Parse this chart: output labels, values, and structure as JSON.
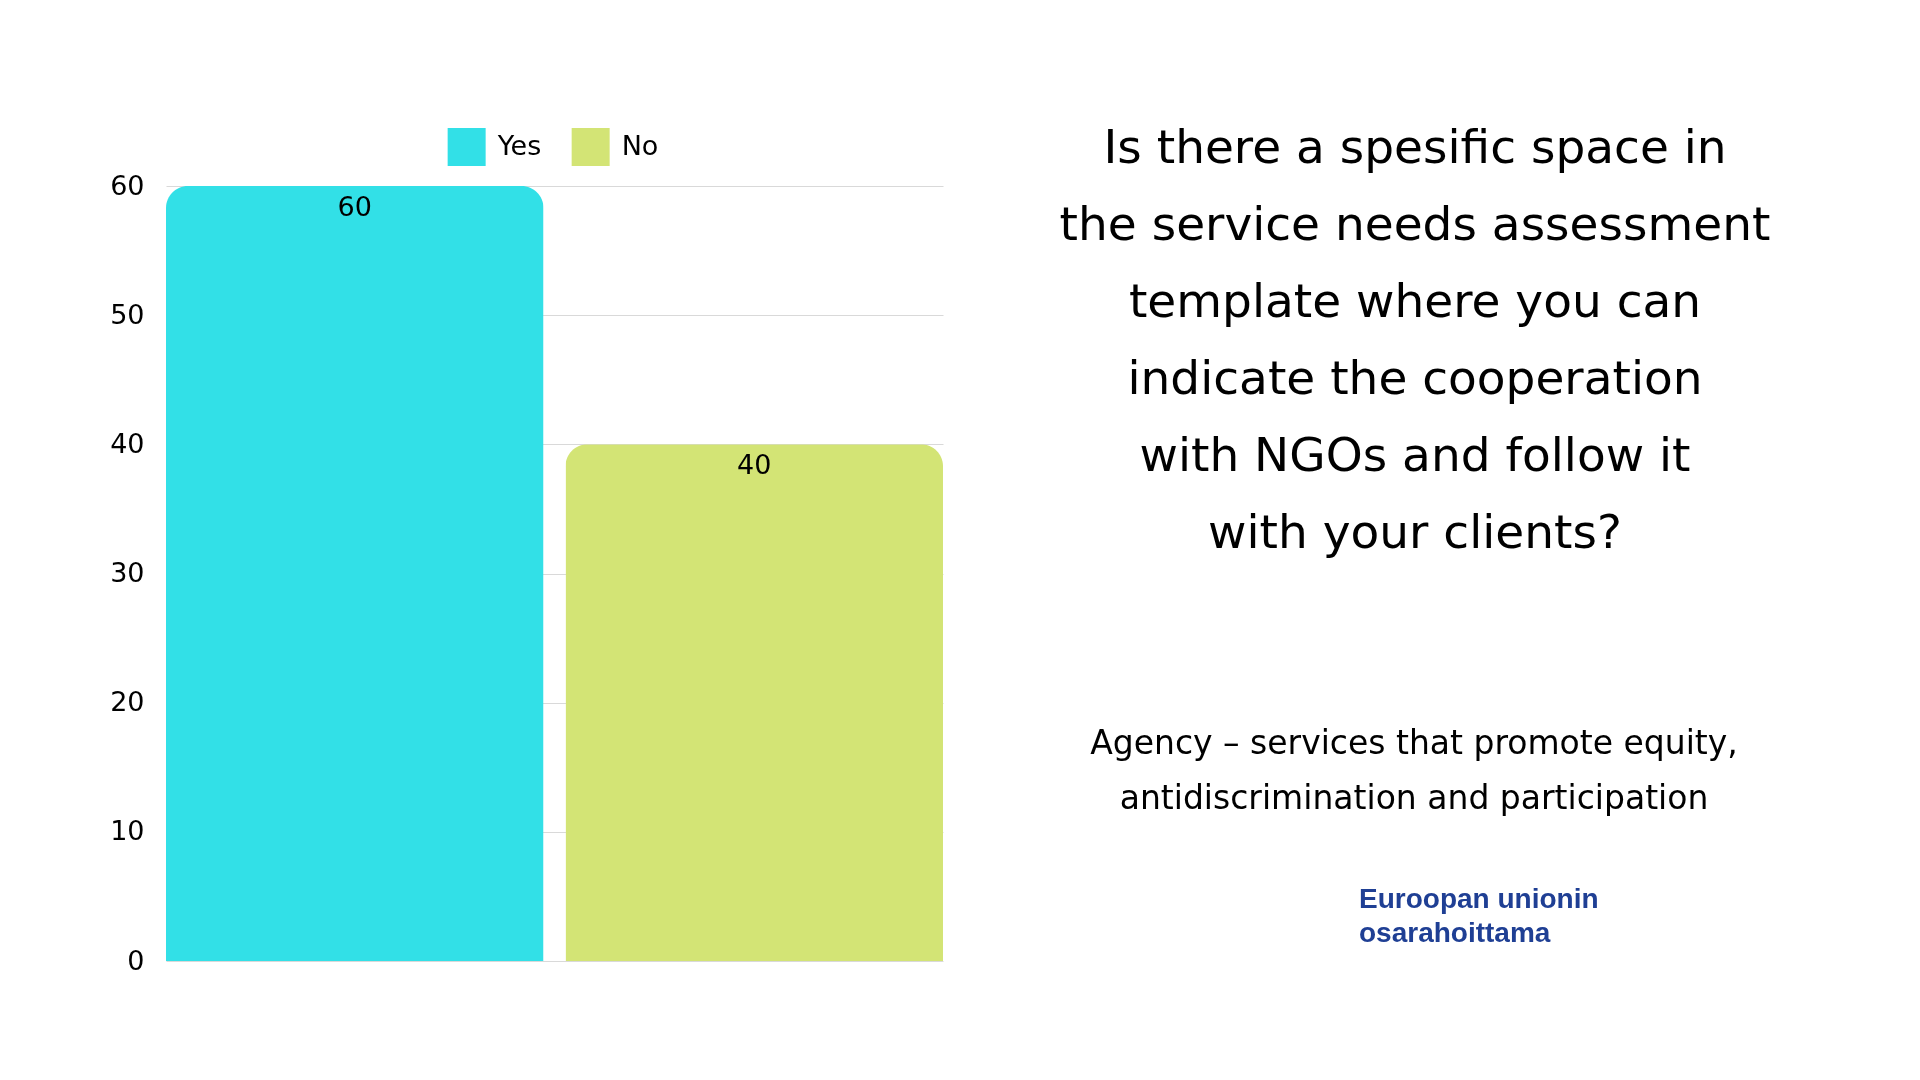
{
  "chart_data": {
    "type": "bar",
    "title": "Is there a spesific space in\nthe service needs assessment\ntemplate where you can\nindicate the cooperation\nwith NGOs and follow it\nwith your clients?",
    "subtitle": "Agency – services that promote equity,\nantidiscrimination and participation",
    "annotations": [
      "Euroopan unionin\nosarahoittama"
    ],
    "categories": [
      null
    ],
    "series": [
      {
        "name": "Yes",
        "color": "#32e0e7",
        "values": [
          60
        ]
      },
      {
        "name": "No",
        "color": "#d3e475",
        "values": [
          40
        ]
      }
    ],
    "ylim": [
      0,
      60
    ],
    "yticks": [
      0,
      10,
      20,
      30,
      40,
      50,
      60
    ],
    "grid": "y",
    "legend": "top",
    "data_labels": true,
    "tick_labels": "y"
  }
}
